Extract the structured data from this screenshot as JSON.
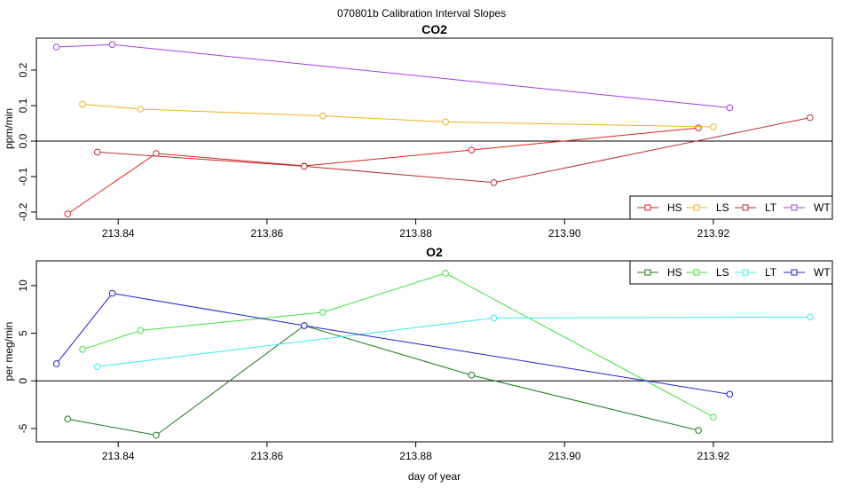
{
  "figure_title": "070801b   Calibration Interval Slopes",
  "xlabel": "day of year",
  "chart_data": [
    {
      "type": "line",
      "title": "CO2",
      "xlabel": "",
      "ylabel": "ppm/min",
      "xlim": [
        213.829,
        213.936
      ],
      "ylim": [
        -0.22,
        0.29
      ],
      "xticks": [
        213.84,
        213.86,
        213.88,
        213.9,
        213.92
      ],
      "yticks": [
        -0.2,
        -0.1,
        0.0,
        0.1,
        0.2
      ],
      "hline": 0,
      "legend_position": "bottom-right",
      "series": [
        {
          "name": "HS",
          "color": "#e0201c",
          "x": [
            213.8332,
            213.8451,
            213.865,
            213.8875,
            213.918
          ],
          "y": [
            -0.205,
            -0.035,
            -0.07,
            -0.025,
            0.037
          ]
        },
        {
          "name": "LS",
          "color": "#f0b020",
          "x": [
            213.8352,
            213.843,
            213.8675,
            213.884,
            213.92
          ],
          "y": [
            0.104,
            0.09,
            0.071,
            0.054,
            0.04
          ]
        },
        {
          "name": "LT",
          "color": "#b83030",
          "x": [
            213.8372,
            213.865,
            213.8905,
            213.933
          ],
          "y": [
            -0.031,
            -0.071,
            -0.117,
            0.066
          ]
        },
        {
          "name": "WT",
          "color": "#a040e0",
          "x": [
            213.8317,
            213.8392,
            213.9222
          ],
          "y": [
            0.265,
            0.272,
            0.094
          ]
        }
      ]
    },
    {
      "type": "line",
      "title": "O2",
      "xlabel": "day of year",
      "ylabel": "per meg/min",
      "xlim": [
        213.829,
        213.936
      ],
      "ylim": [
        -6.4,
        12.6
      ],
      "xticks": [
        213.84,
        213.86,
        213.88,
        213.9,
        213.92
      ],
      "yticks": [
        -5,
        0,
        5,
        10
      ],
      "hline": 0,
      "legend_position": "top-right",
      "series": [
        {
          "name": "HS",
          "color": "#1a7a1a",
          "x": [
            213.8332,
            213.8451,
            213.865,
            213.8875,
            213.918
          ],
          "y": [
            -4.0,
            -5.7,
            5.8,
            0.6,
            -5.2
          ]
        },
        {
          "name": "LS",
          "color": "#40e040",
          "x": [
            213.8352,
            213.843,
            213.8675,
            213.884,
            213.92
          ],
          "y": [
            3.3,
            5.3,
            7.2,
            11.3,
            -3.8
          ]
        },
        {
          "name": "LT",
          "color": "#40e8f0",
          "x": [
            213.8372,
            213.8905,
            213.933
          ],
          "y": [
            1.5,
            6.6,
            6.7
          ]
        },
        {
          "name": "WT",
          "color": "#2020d0",
          "x": [
            213.8317,
            213.8392,
            213.865,
            213.9222
          ],
          "y": [
            1.8,
            9.2,
            5.8,
            -1.4
          ]
        }
      ]
    }
  ]
}
